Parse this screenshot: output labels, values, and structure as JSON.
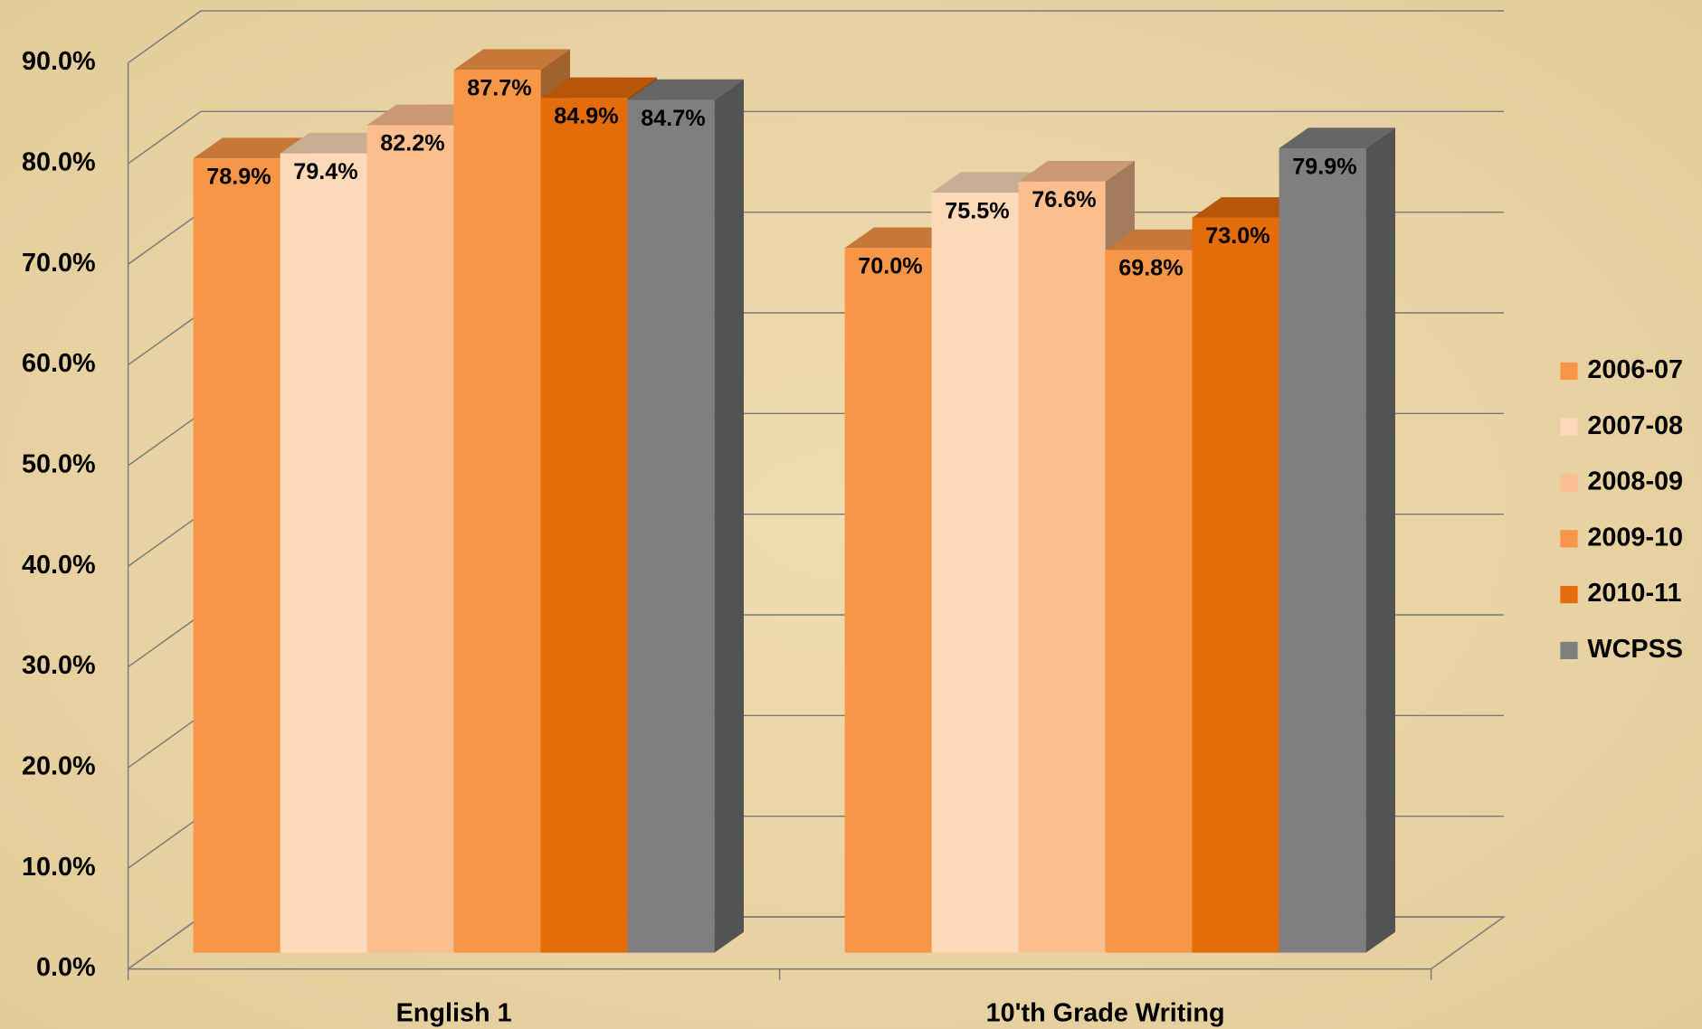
{
  "chart_data": {
    "type": "bar3d",
    "categories": [
      "English 1",
      "10'th Grade Writing"
    ],
    "series": [
      {
        "name": "2006-07",
        "color": "#f79646",
        "values": [
          78.9,
          70.0
        ],
        "value_labels": [
          "78.9%",
          "70.0%"
        ]
      },
      {
        "name": "2007-08",
        "color": "#fdd9b9",
        "values": [
          79.4,
          75.5
        ],
        "value_labels": [
          "79.4%",
          "75.5%"
        ]
      },
      {
        "name": "2008-09",
        "color": "#fbbf8f",
        "values": [
          82.2,
          76.6
        ],
        "value_labels": [
          "82.2%",
          "76.6%"
        ]
      },
      {
        "name": "2009-10",
        "color": "#f79646",
        "values": [
          87.7,
          69.8
        ],
        "value_labels": [
          "87.7%",
          "69.8%"
        ]
      },
      {
        "name": "2010-11",
        "color": "#e46c0a",
        "values": [
          84.9,
          73.0
        ],
        "value_labels": [
          "84.9%",
          "73.0%"
        ]
      },
      {
        "name": "WCPSS",
        "color": "#7f7f7f",
        "values": [
          84.7,
          79.9
        ],
        "value_labels": [
          "84.7%",
          "79.9%"
        ]
      }
    ],
    "ylim": [
      0,
      90
    ],
    "yticks": [
      {
        "value": 0,
        "label": "0.0%"
      },
      {
        "value": 10,
        "label": "10.0%"
      },
      {
        "value": 20,
        "label": "20.0%"
      },
      {
        "value": 30,
        "label": "30.0%"
      },
      {
        "value": 40,
        "label": "40.0%"
      },
      {
        "value": 50,
        "label": "50.0%"
      },
      {
        "value": 60,
        "label": "60.0%"
      },
      {
        "value": 70,
        "label": "70.0%"
      },
      {
        "value": 80,
        "label": "80.0%"
      },
      {
        "value": 90,
        "label": "90.0%"
      }
    ],
    "grid": true,
    "legend": "right"
  }
}
